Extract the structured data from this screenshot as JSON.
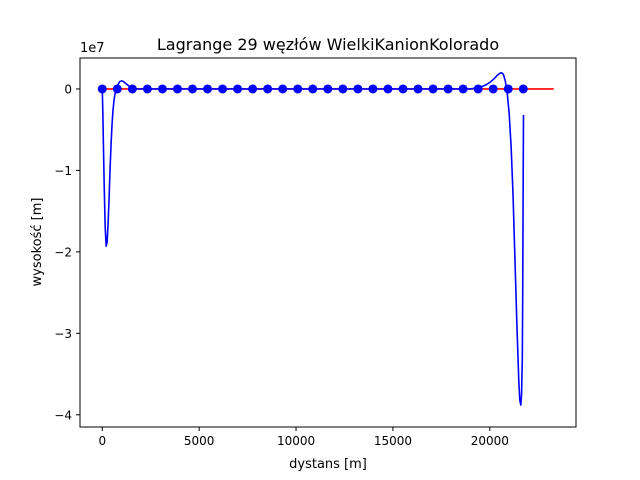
{
  "chart_data": {
    "type": "line",
    "title": "Lagrange 29 węzłów WielkiKanionKolorado",
    "xlabel": "dystans [m]",
    "ylabel": "wysokość [m]",
    "y_multiplier_label": "1e7",
    "xlim": [
      -1150,
      24450
    ],
    "ylim": [
      -4.15,
      0.38
    ],
    "x_ticks": [
      0,
      5000,
      10000,
      15000,
      20000
    ],
    "x_tick_labels": [
      "0",
      "5000",
      "10000",
      "15000",
      "20000"
    ],
    "y_ticks": [
      0,
      -1,
      -2,
      -3,
      -4
    ],
    "y_tick_labels": [
      "0",
      "−1",
      "−2",
      "−3",
      "−4"
    ],
    "grid": false,
    "legend": "none",
    "series": [
      {
        "role": "original profile",
        "color": "#ff0000",
        "x": [
          0,
          2000,
          4000,
          6000,
          8000,
          10000,
          12000,
          14000,
          16000,
          18000,
          20000,
          22000,
          23300
        ],
        "y": [
          0.0,
          0.0,
          0.0,
          0.0,
          0.0,
          0.0,
          0.0,
          0.0,
          0.0,
          0.0,
          0.0,
          0.0,
          0.0
        ]
      },
      {
        "role": "interpolation curve",
        "color": "#0000ff",
        "x": [
          0,
          30,
          60,
          100,
          150,
          200,
          250,
          300,
          350,
          400,
          450,
          500,
          550,
          600,
          650,
          700,
          750,
          800,
          900,
          1000,
          1100,
          1200,
          1300,
          1400,
          1550,
          1700,
          1900,
          2100,
          2400,
          3000,
          5000,
          8000,
          11000,
          14000,
          17000,
          19000,
          19500,
          19800,
          20000,
          20200,
          20400,
          20500,
          20600,
          20700,
          20800,
          20900,
          21000,
          21100,
          21200,
          21300,
          21400,
          21500,
          21550,
          21600,
          21640,
          21680,
          21700,
          21720,
          21740
        ],
        "y": [
          0.0,
          -0.3,
          -0.7,
          -1.2,
          -1.7,
          -1.93,
          -1.88,
          -1.65,
          -1.35,
          -1.0,
          -0.7,
          -0.45,
          -0.27,
          -0.15,
          -0.07,
          -0.02,
          0.02,
          0.05,
          0.09,
          0.1,
          0.09,
          0.07,
          0.05,
          0.03,
          0.01,
          0.0,
          0.0,
          0.0,
          0.0,
          0.0,
          0.0,
          0.0,
          0.0,
          0.0,
          0.0,
          0.0,
          0.02,
          0.05,
          0.08,
          0.12,
          0.17,
          0.19,
          0.2,
          0.18,
          0.1,
          -0.05,
          -0.3,
          -0.7,
          -1.3,
          -2.1,
          -2.9,
          -3.6,
          -3.82,
          -3.88,
          -3.75,
          -3.3,
          -2.5,
          -1.3,
          -0.32
        ]
      },
      {
        "role": "nodes",
        "color": "#0000ff",
        "x": [
          0,
          776,
          1552,
          2328,
          3104,
          3880,
          4656,
          5432,
          6208,
          6984,
          7760,
          8536,
          9312,
          10088,
          10864,
          11640,
          12416,
          13192,
          13968,
          14744,
          15520,
          16296,
          17072,
          17848,
          18624,
          19400,
          20176,
          20952,
          21728
        ],
        "y": [
          0.0,
          0.0,
          0.0,
          0.0,
          0.0,
          0.0,
          0.0,
          0.0,
          0.0,
          0.0,
          0.0,
          0.0,
          0.0,
          0.0,
          0.0,
          0.0,
          0.0,
          0.0,
          0.0,
          0.0,
          0.0,
          0.0,
          0.0,
          0.0,
          0.0,
          0.0,
          0.0,
          0.0,
          0.0
        ]
      }
    ]
  }
}
